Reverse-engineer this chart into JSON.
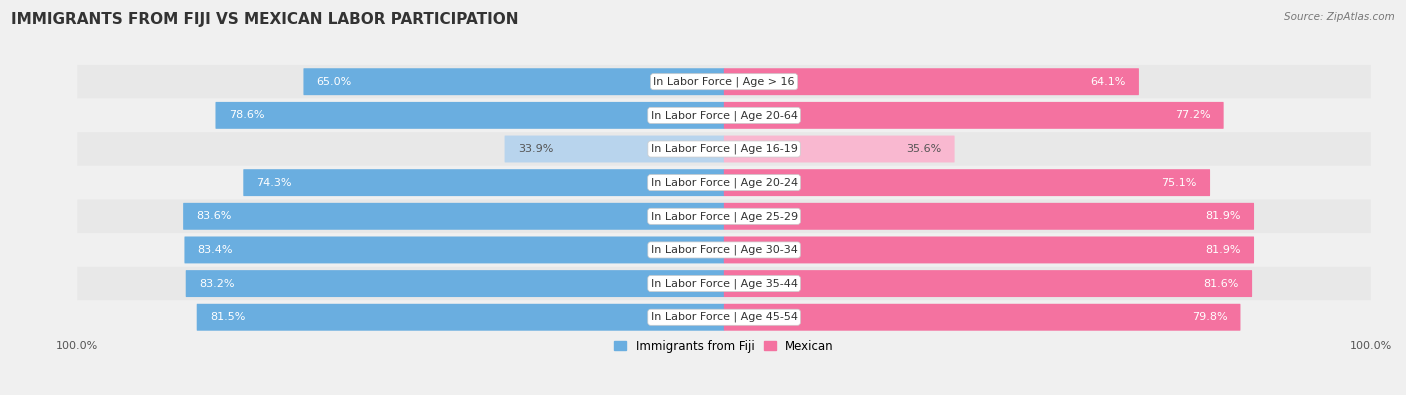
{
  "title": "IMMIGRANTS FROM FIJI VS MEXICAN LABOR PARTICIPATION",
  "source": "Source: ZipAtlas.com",
  "categories": [
    "In Labor Force | Age > 16",
    "In Labor Force | Age 20-64",
    "In Labor Force | Age 16-19",
    "In Labor Force | Age 20-24",
    "In Labor Force | Age 25-29",
    "In Labor Force | Age 30-34",
    "In Labor Force | Age 35-44",
    "In Labor Force | Age 45-54"
  ],
  "fiji_values": [
    65.0,
    78.6,
    33.9,
    74.3,
    83.6,
    83.4,
    83.2,
    81.5
  ],
  "mexican_values": [
    64.1,
    77.2,
    35.6,
    75.1,
    81.9,
    81.9,
    81.6,
    79.8
  ],
  "fiji_color": "#6aaee0",
  "fiji_color_light": "#b8d4ed",
  "mexican_color": "#f472a0",
  "mexican_color_light": "#f9b8d0",
  "bg_color": "#f0f0f0",
  "row_colors": [
    "#e8e8e8",
    "#f0f0f0"
  ],
  "title_fontsize": 11,
  "label_fontsize": 8.0,
  "value_fontsize": 8.0,
  "legend_fontsize": 8.5,
  "axis_label_fontsize": 8.0
}
